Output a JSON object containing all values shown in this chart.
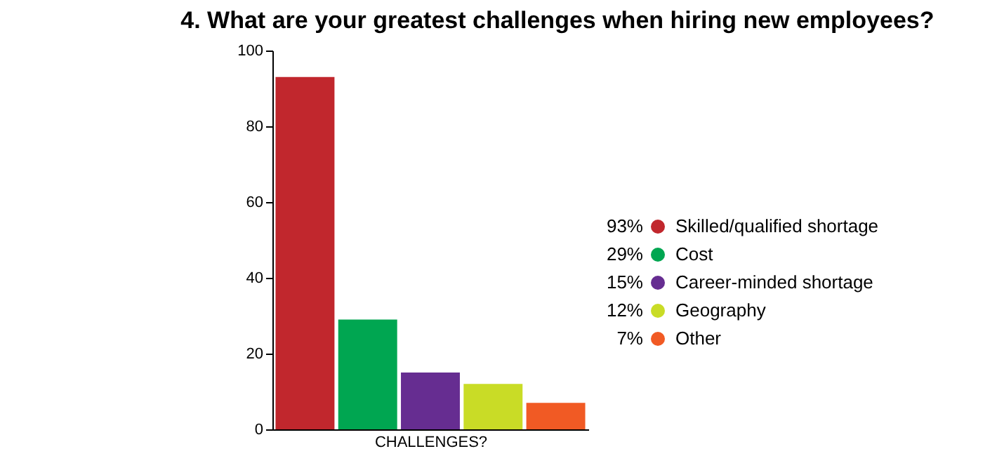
{
  "chart_data": {
    "type": "bar",
    "title": "4. What are your greatest challenges when hiring new employees?",
    "xlabel": "CHALLENGES?",
    "categories": [
      null,
      null,
      null,
      null,
      null
    ],
    "series": [
      {
        "name": "Skilled/qualified shortage",
        "color": "#c1272d",
        "values": [
          93,
          null,
          null,
          null,
          null
        ]
      },
      {
        "name": "Cost",
        "color": "#00a651",
        "values": [
          null,
          29,
          null,
          null,
          null
        ]
      },
      {
        "name": "Career-minded shortage",
        "color": "#662d91",
        "values": [
          null,
          null,
          15,
          null,
          null
        ]
      },
      {
        "name": "Geography",
        "color": "#c9dc26",
        "values": [
          null,
          null,
          null,
          12,
          null
        ]
      },
      {
        "name": "Other",
        "color": "#f15a24",
        "values": [
          null,
          null,
          null,
          null,
          7
        ]
      }
    ],
    "annotations": [
      "93%",
      "29%",
      "15%",
      "12%",
      "7%"
    ],
    "ylim": [
      0,
      100
    ],
    "yticks": [
      0,
      20,
      40,
      60,
      80,
      100
    ],
    "grid": false,
    "legend": "right",
    "tick_labels": "y"
  }
}
